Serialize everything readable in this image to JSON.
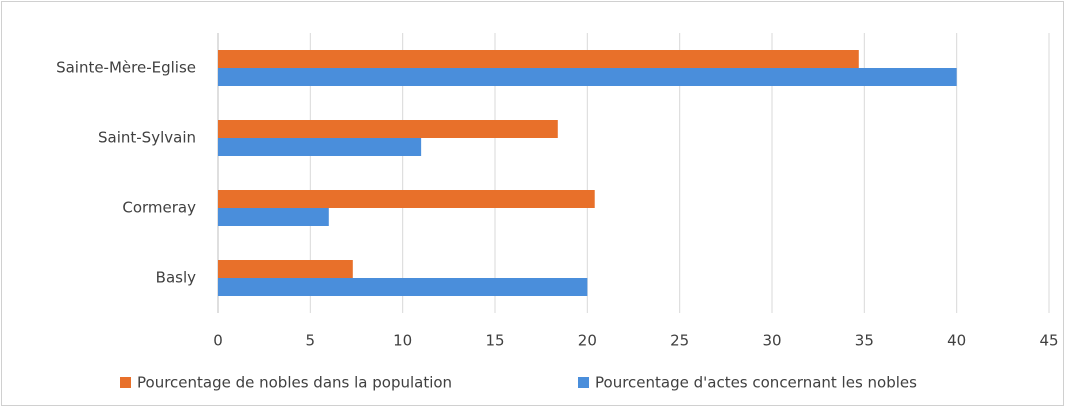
{
  "chart_data": {
    "type": "hbar",
    "categories": [
      "Sainte-Mère-Eglise",
      "Saint-Sylvain",
      "Cormeray",
      "Basly"
    ],
    "series": [
      {
        "name": "Pourcentage de nobles dans la population",
        "color": "#e8702a",
        "values": [
          34.7,
          18.4,
          20.4,
          7.3
        ]
      },
      {
        "name": "Pourcentage d'actes concernant les nobles",
        "color": "#4a8edb",
        "values": [
          40,
          11,
          6,
          20
        ]
      }
    ],
    "xlim": [
      0,
      45
    ],
    "xticks": [
      0,
      5,
      10,
      15,
      20,
      25,
      30,
      35,
      40,
      45
    ],
    "grid": true,
    "legend": "bottom"
  }
}
